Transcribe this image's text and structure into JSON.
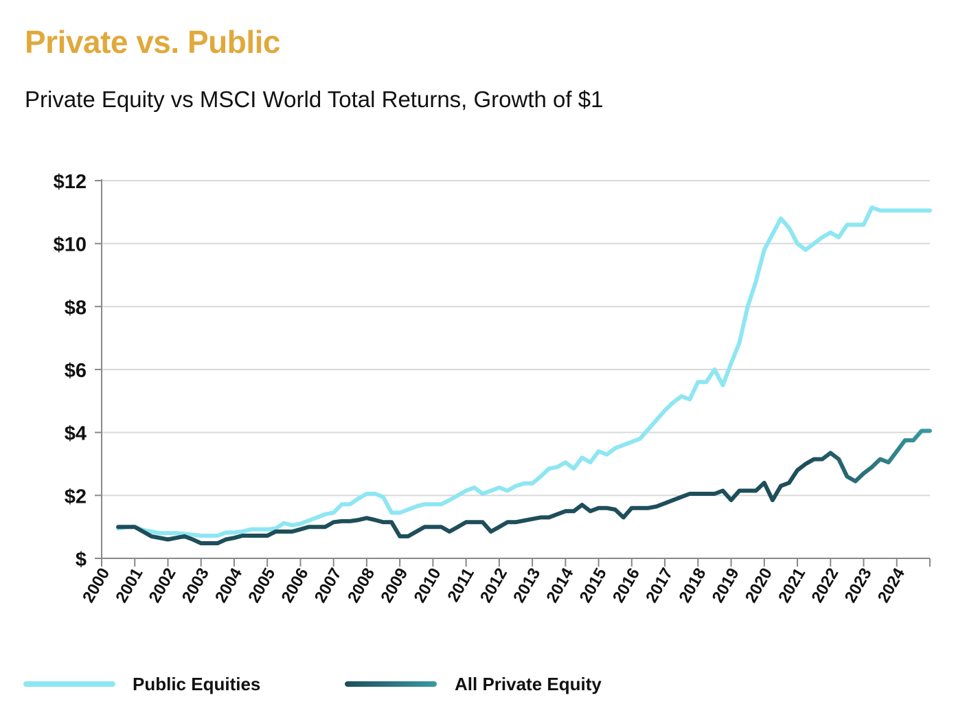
{
  "header": {
    "title": "Private vs. Public",
    "subtitle": "Private Equity vs MSCI World Total Returns, Growth of $1"
  },
  "legend": {
    "public_label": "Public Equities",
    "private_label": "All Private Equity"
  },
  "colors": {
    "title": "#E0A93B",
    "public": "#8EE6F2",
    "private_dark": "#1E4E5A",
    "private_light": "#3A9AA2",
    "grid": "#D9D9D9",
    "axis": "#888888"
  },
  "chart_data": {
    "type": "line",
    "title": "Private Equity vs MSCI World Total Returns, Growth of $1",
    "xlabel": "",
    "ylabel": "",
    "xlim": [
      2000,
      2025
    ],
    "ylim": [
      0,
      12
    ],
    "y_ticks": [
      0,
      2,
      4,
      6,
      8,
      10,
      12
    ],
    "y_tick_labels": [
      "$",
      "$2",
      "$4",
      "$6",
      "$8",
      "$10",
      "$12"
    ],
    "x_ticks": [
      2000,
      2001,
      2002,
      2003,
      2004,
      2005,
      2006,
      2007,
      2008,
      2009,
      2010,
      2011,
      2012,
      2013,
      2014,
      2015,
      2016,
      2017,
      2018,
      2019,
      2020,
      2021,
      2022,
      2023,
      2024
    ],
    "x_tick_labels": [
      "2000",
      "2001",
      "2002",
      "2003",
      "2004",
      "2005",
      "2006",
      "2007",
      "2008",
      "2009",
      "2010",
      "2011",
      "2012",
      "2013",
      "2014",
      "2015",
      "2016",
      "2017",
      "2018",
      "2019",
      "2020",
      "2021",
      "2022",
      "2023",
      "2024"
    ],
    "grid": true,
    "legend_position": "bottom",
    "series": [
      {
        "name": "Public Equities",
        "x": [
          2000.5,
          2000.75,
          2001.0,
          2001.25,
          2001.5,
          2001.75,
          2002.0,
          2002.25,
          2002.5,
          2002.75,
          2003.0,
          2003.25,
          2003.5,
          2003.75,
          2004.0,
          2004.25,
          2004.5,
          2004.75,
          2005.0,
          2005.25,
          2005.5,
          2005.75,
          2006.0,
          2006.25,
          2006.5,
          2006.75,
          2007.0,
          2007.25,
          2007.5,
          2007.75,
          2008.0,
          2008.25,
          2008.5,
          2008.75,
          2009.0,
          2009.25,
          2009.5,
          2009.75,
          2010.0,
          2010.25,
          2010.5,
          2010.75,
          2011.0,
          2011.25,
          2011.5,
          2011.75,
          2012.0,
          2012.25,
          2012.5,
          2012.75,
          2013.0,
          2013.25,
          2013.5,
          2013.75,
          2014.0,
          2014.25,
          2014.5,
          2014.75,
          2015.0,
          2015.25,
          2015.5,
          2015.75,
          2016.0,
          2016.25,
          2016.5,
          2016.75,
          2017.0,
          2017.25,
          2017.5,
          2017.75,
          2018.0,
          2018.25,
          2018.5,
          2018.75,
          2019.0,
          2019.25,
          2019.5,
          2019.75,
          2020.0,
          2020.25,
          2020.5,
          2020.75,
          2021.0,
          2021.25,
          2021.5,
          2021.75,
          2022.0,
          2022.25,
          2022.5,
          2022.75,
          2023.0,
          2023.25,
          2023.5,
          2023.75,
          2024.0,
          2024.25,
          2024.5,
          2024.75,
          2025.0
        ],
        "y": [
          0.95,
          1.0,
          1.0,
          0.9,
          0.85,
          0.8,
          0.8,
          0.8,
          0.78,
          0.75,
          0.72,
          0.72,
          0.72,
          0.82,
          0.82,
          0.85,
          0.92,
          0.92,
          0.92,
          0.95,
          1.12,
          1.05,
          1.1,
          1.2,
          1.3,
          1.4,
          1.45,
          1.72,
          1.72,
          1.9,
          2.05,
          2.05,
          1.95,
          1.45,
          1.45,
          1.55,
          1.65,
          1.72,
          1.72,
          1.72,
          1.85,
          2.0,
          2.15,
          2.25,
          2.05,
          2.15,
          2.25,
          2.15,
          2.3,
          2.38,
          2.38,
          2.6,
          2.85,
          2.9,
          3.05,
          2.85,
          3.2,
          3.05,
          3.4,
          3.3,
          3.5,
          3.6,
          3.7,
          3.8,
          4.1,
          4.4,
          4.7,
          4.95,
          5.15,
          5.05,
          5.6,
          5.6,
          6.0,
          5.5,
          6.2,
          6.85,
          8.0,
          8.8,
          9.8,
          10.3,
          10.8,
          10.5,
          10.0,
          9.8,
          10.0,
          10.2,
          10.35,
          10.2,
          10.6,
          10.6,
          10.6,
          11.15,
          11.05,
          11.05,
          11.05,
          11.05,
          11.05,
          11.05,
          11.05
        ]
      },
      {
        "name": "All Private Equity",
        "x": [
          2000.5,
          2000.75,
          2001.0,
          2001.25,
          2001.5,
          2001.75,
          2002.0,
          2002.25,
          2002.5,
          2002.75,
          2003.0,
          2003.25,
          2003.5,
          2003.75,
          2004.0,
          2004.25,
          2004.5,
          2004.75,
          2005.0,
          2005.25,
          2005.5,
          2005.75,
          2006.0,
          2006.25,
          2006.5,
          2006.75,
          2007.0,
          2007.25,
          2007.5,
          2007.75,
          2008.0,
          2008.25,
          2008.5,
          2008.75,
          2009.0,
          2009.25,
          2009.5,
          2009.75,
          2010.0,
          2010.25,
          2010.5,
          2010.75,
          2011.0,
          2011.25,
          2011.5,
          2011.75,
          2012.0,
          2012.25,
          2012.5,
          2012.75,
          2013.0,
          2013.25,
          2013.5,
          2013.75,
          2014.0,
          2014.25,
          2014.5,
          2014.75,
          2015.0,
          2015.25,
          2015.5,
          2015.75,
          2016.0,
          2016.25,
          2016.5,
          2016.75,
          2017.0,
          2017.25,
          2017.5,
          2017.75,
          2018.0,
          2018.25,
          2018.5,
          2018.75,
          2019.0,
          2019.25,
          2019.5,
          2019.75,
          2020.0,
          2020.25,
          2020.5,
          2020.75,
          2021.0,
          2021.25,
          2021.5,
          2021.75,
          2022.0,
          2022.25,
          2022.5,
          2022.75,
          2023.0,
          2023.25,
          2023.5,
          2023.75,
          2024.0,
          2024.25,
          2024.5,
          2024.75,
          2025.0
        ],
        "y": [
          1.0,
          1.0,
          1.0,
          0.85,
          0.7,
          0.65,
          0.6,
          0.65,
          0.7,
          0.6,
          0.48,
          0.48,
          0.48,
          0.6,
          0.65,
          0.72,
          0.72,
          0.72,
          0.72,
          0.85,
          0.85,
          0.85,
          0.92,
          1.0,
          1.0,
          1.0,
          1.15,
          1.18,
          1.18,
          1.22,
          1.28,
          1.22,
          1.15,
          1.15,
          0.7,
          0.7,
          0.85,
          1.0,
          1.0,
          1.0,
          0.85,
          1.0,
          1.15,
          1.15,
          1.15,
          0.85,
          1.0,
          1.15,
          1.15,
          1.2,
          1.25,
          1.3,
          1.3,
          1.4,
          1.5,
          1.5,
          1.7,
          1.5,
          1.6,
          1.6,
          1.55,
          1.3,
          1.6,
          1.6,
          1.6,
          1.65,
          1.75,
          1.85,
          1.95,
          2.05,
          2.05,
          2.05,
          2.05,
          2.15,
          1.85,
          2.15,
          2.15,
          2.15,
          2.4,
          1.85,
          2.3,
          2.4,
          2.8,
          3.0,
          3.15,
          3.15,
          3.35,
          3.15,
          2.6,
          2.45,
          2.7,
          2.9,
          3.15,
          3.05,
          3.4,
          3.75,
          3.75,
          4.05,
          4.05
        ]
      }
    ]
  }
}
